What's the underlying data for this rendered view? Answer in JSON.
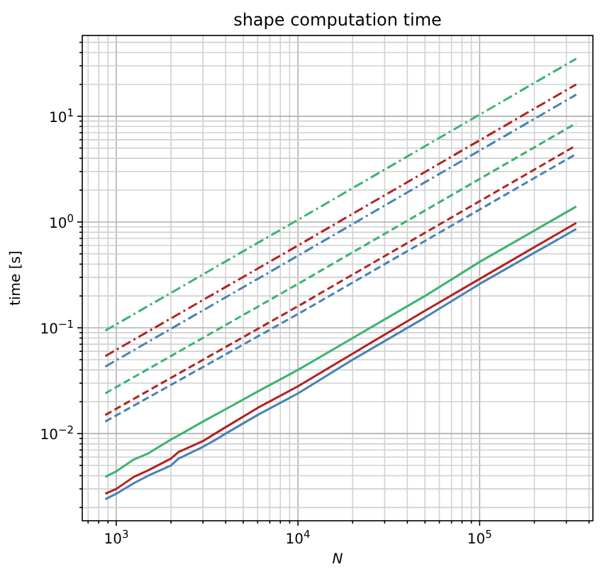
{
  "chart_data": {
    "type": "line",
    "title": "shape computation time",
    "xlabel": "N",
    "ylabel": "time [s]",
    "log": "xy",
    "grid": true,
    "marker": "none",
    "xlim": [
      650,
      420000
    ],
    "ylim": [
      0.0015,
      58
    ],
    "xticks": [
      {
        "value": 700,
        "label": null
      },
      {
        "value": 800,
        "label": null
      },
      {
        "value": 900,
        "label": null
      },
      {
        "value": 1000,
        "label": "10$^{3}$"
      },
      {
        "value": 2000,
        "label": null
      },
      {
        "value": 3000,
        "label": null
      },
      {
        "value": 4000,
        "label": null
      },
      {
        "value": 5000,
        "label": null
      },
      {
        "value": 6000,
        "label": null
      },
      {
        "value": 7000,
        "label": null
      },
      {
        "value": 8000,
        "label": null
      },
      {
        "value": 9000,
        "label": null
      },
      {
        "value": 10000,
        "label": "10$^{4}$"
      },
      {
        "value": 20000,
        "label": null
      },
      {
        "value": 30000,
        "label": null
      },
      {
        "value": 40000,
        "label": null
      },
      {
        "value": 50000,
        "label": null
      },
      {
        "value": 60000,
        "label": null
      },
      {
        "value": 70000,
        "label": null
      },
      {
        "value": 80000,
        "label": null
      },
      {
        "value": 90000,
        "label": null
      },
      {
        "value": 100000,
        "label": "10$^{5}$"
      },
      {
        "value": 200000,
        "label": null
      },
      {
        "value": 300000,
        "label": null
      },
      {
        "value": 400000,
        "label": null
      }
    ],
    "yticks": [
      {
        "value": 0.002,
        "label": null
      },
      {
        "value": 0.003,
        "label": null
      },
      {
        "value": 0.004,
        "label": null
      },
      {
        "value": 0.005,
        "label": null
      },
      {
        "value": 0.006,
        "label": null
      },
      {
        "value": 0.007,
        "label": null
      },
      {
        "value": 0.008,
        "label": null
      },
      {
        "value": 0.009,
        "label": null
      },
      {
        "value": 0.01,
        "label": "10$^{−2}$"
      },
      {
        "value": 0.02,
        "label": null
      },
      {
        "value": 0.03,
        "label": null
      },
      {
        "value": 0.04,
        "label": null
      },
      {
        "value": 0.05,
        "label": null
      },
      {
        "value": 0.06,
        "label": null
      },
      {
        "value": 0.07,
        "label": null
      },
      {
        "value": 0.08,
        "label": null
      },
      {
        "value": 0.09,
        "label": null
      },
      {
        "value": 0.1,
        "label": "10$^{−1}$"
      },
      {
        "value": 0.2,
        "label": null
      },
      {
        "value": 0.3,
        "label": null
      },
      {
        "value": 0.4,
        "label": null
      },
      {
        "value": 0.5,
        "label": null
      },
      {
        "value": 0.6,
        "label": null
      },
      {
        "value": 0.7,
        "label": null
      },
      {
        "value": 0.8,
        "label": null
      },
      {
        "value": 0.9,
        "label": null
      },
      {
        "value": 1,
        "label": "10$^{0}$"
      },
      {
        "value": 2,
        "label": null
      },
      {
        "value": 3,
        "label": null
      },
      {
        "value": 4,
        "label": null
      },
      {
        "value": 5,
        "label": null
      },
      {
        "value": 6,
        "label": null
      },
      {
        "value": 7,
        "label": null
      },
      {
        "value": 8,
        "label": null
      },
      {
        "value": 9,
        "label": null
      },
      {
        "value": 10,
        "label": "10$^{1}$"
      },
      {
        "value": 20,
        "label": null
      },
      {
        "value": 30,
        "label": null
      },
      {
        "value": 40,
        "label": null
      },
      {
        "value": 50,
        "label": null
      }
    ],
    "series": [
      {
        "color": "#3cb371",
        "line_style": "dashdot",
        "x": [
          870,
          10000,
          340000
        ],
        "values": [
          0.094,
          1.05,
          35
        ]
      },
      {
        "color": "#b22222",
        "line_style": "dashdot",
        "x": [
          870,
          10000,
          340000
        ],
        "values": [
          0.054,
          0.6,
          20
        ]
      },
      {
        "color": "#4682b4",
        "line_style": "dashdot",
        "x": [
          870,
          10000,
          340000
        ],
        "values": [
          0.043,
          0.48,
          16
        ]
      },
      {
        "color": "#3cb371",
        "line_style": "dashed",
        "x": [
          870,
          10000,
          340000
        ],
        "values": [
          0.024,
          0.26,
          8.6
        ]
      },
      {
        "color": "#b22222",
        "line_style": "dashed",
        "x": [
          870,
          10000,
          340000
        ],
        "values": [
          0.015,
          0.16,
          5.3
        ]
      },
      {
        "color": "#4682b4",
        "line_style": "dashed",
        "x": [
          870,
          10000,
          340000
        ],
        "values": [
          0.013,
          0.135,
          4.4
        ]
      },
      {
        "color": "#3cb371",
        "line_style": "solid",
        "x": [
          870,
          1000,
          1250,
          1500,
          2000,
          2200,
          3000,
          3500,
          4000,
          6000,
          10000,
          20000,
          50000,
          100000,
          340000
        ],
        "values": [
          0.0039,
          0.0044,
          0.0057,
          0.0065,
          0.0088,
          0.0096,
          0.013,
          0.015,
          0.017,
          0.025,
          0.04,
          0.08,
          0.2,
          0.42,
          1.4
        ]
      },
      {
        "color": "#b22222",
        "line_style": "solid",
        "x": [
          870,
          1000,
          1250,
          1500,
          2000,
          2200,
          3000,
          3500,
          4000,
          6000,
          10000,
          20000,
          50000,
          100000,
          340000
        ],
        "values": [
          0.0027,
          0.003,
          0.0039,
          0.0045,
          0.0058,
          0.0067,
          0.0085,
          0.01,
          0.0115,
          0.0175,
          0.028,
          0.057,
          0.145,
          0.29,
          0.98
        ]
      },
      {
        "color": "#4682b4",
        "line_style": "solid",
        "x": [
          870,
          1000,
          1250,
          1500,
          2000,
          2200,
          3000,
          3500,
          4000,
          6000,
          10000,
          20000,
          50000,
          100000,
          340000
        ],
        "values": [
          0.0024,
          0.0027,
          0.0034,
          0.004,
          0.005,
          0.0058,
          0.0075,
          0.0087,
          0.01,
          0.015,
          0.024,
          0.05,
          0.125,
          0.26,
          0.86
        ]
      }
    ]
  }
}
